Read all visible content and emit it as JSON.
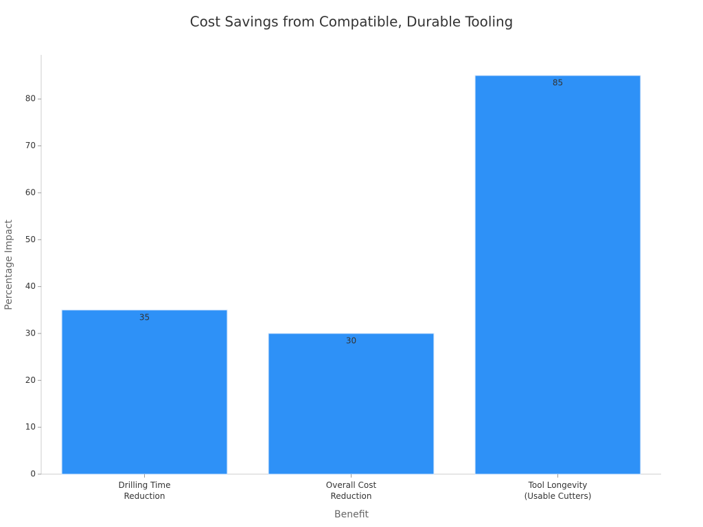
{
  "chart_data": {
    "type": "bar",
    "title": "Cost Savings from Compatible, Durable Tooling",
    "x_label": "Benefit",
    "y_label": "Percentage Impact",
    "categories": [
      "Drilling Time\nReduction",
      "Overall Cost\nReduction",
      "Tool Longevity\n(Usable Cutters)"
    ],
    "values": [
      35,
      30,
      85
    ],
    "color": "#2e91f7",
    "ylim": [
      0,
      89.4
    ],
    "yticks": [
      0,
      10,
      20,
      30,
      40,
      50,
      60,
      70,
      80
    ],
    "grid": false
  }
}
